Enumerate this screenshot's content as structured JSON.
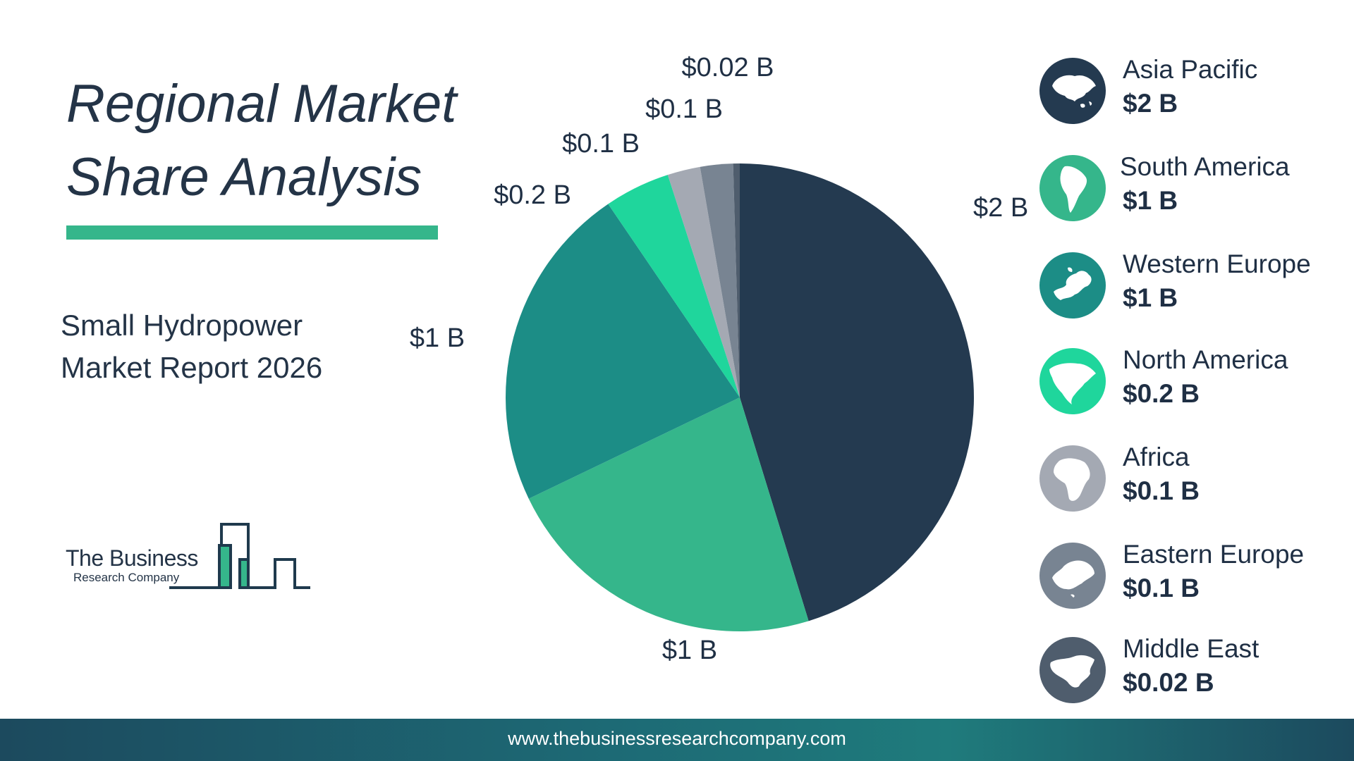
{
  "header": {
    "title_line1": "Regional Market",
    "title_line2": "Share Analysis",
    "subtitle_line1": "Small Hydropower",
    "subtitle_line2": "Market Report 2026"
  },
  "logo": {
    "name": "The Business",
    "sub": "Research Company"
  },
  "footer": {
    "url": "www.thebusinessresearchcompany.com"
  },
  "colors": {
    "title_rule": "#35b68b",
    "asia_pacific": "#243a50",
    "south_america": "#35b68b",
    "western_europe": "#1c8d86",
    "north_america": "#1fd69c",
    "africa": "#a4a9b3",
    "eastern_europe": "#788492",
    "middle_east": "#4f5d6d"
  },
  "chart_data": {
    "type": "pie",
    "categories": [
      "Asia Pacific",
      "South America",
      "Western Europe",
      "North America",
      "Africa",
      "Eastern Europe",
      "Middle East"
    ],
    "values": [
      2,
      1,
      1,
      0.2,
      0.1,
      0.1,
      0.02
    ],
    "unit": "B",
    "data_labels": [
      "$2 B",
      "$1 B",
      "$1 B",
      "$0.2 B",
      "$0.1 B",
      "$0.1 B",
      "$0.02 B"
    ],
    "slice_colors": [
      "#243a50",
      "#35b68b",
      "#1c8d86",
      "#1fd69c",
      "#a4a9b3",
      "#788492",
      "#4f5d6d"
    ],
    "legend_placement": "right"
  },
  "legend": {
    "items": [
      {
        "name": "Asia Pacific",
        "value": "$2 B",
        "icon": "asia-map-icon"
      },
      {
        "name": "South America",
        "value": "$1 B",
        "icon": "south-america-map-icon"
      },
      {
        "name": "Western Europe",
        "value": "$1 B",
        "icon": "western-europe-map-icon"
      },
      {
        "name": "North America",
        "value": "$0.2 B",
        "icon": "north-america-map-icon"
      },
      {
        "name": "Africa",
        "value": "$0.1 B",
        "icon": "africa-map-icon"
      },
      {
        "name": "Eastern Europe",
        "value": "$0.1 B",
        "icon": "eastern-europe-map-icon"
      },
      {
        "name": "Middle East",
        "value": "$0.02 B",
        "icon": "middle-east-map-icon"
      }
    ]
  }
}
